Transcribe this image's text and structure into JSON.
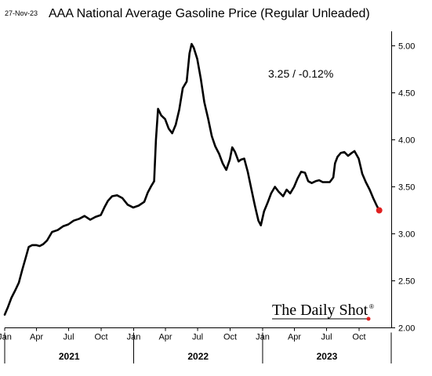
{
  "header": {
    "date": "27-Nov-23"
  },
  "logo": {
    "text": "The Daily Shot",
    "mark": "®",
    "accent": "#e02020"
  },
  "chart_data": {
    "type": "line",
    "title": "AAA National Average Gasoline Price (Regular Unleaded)",
    "annotation": "3.25  /  -0.12%",
    "xlabel": "",
    "ylabel": "",
    "ylim": [
      2.0,
      5.0
    ],
    "y_ticks": [
      "2.00",
      "2.50",
      "3.00",
      "3.50",
      "4.00",
      "4.50",
      "5.00"
    ],
    "x_range": [
      "2021-01-01",
      "2023-12-31"
    ],
    "x_ticks": [
      {
        "date": "2021-01-01",
        "label": "Jan"
      },
      {
        "date": "2021-04-01",
        "label": "Apr"
      },
      {
        "date": "2021-07-01",
        "label": "Jul"
      },
      {
        "date": "2021-10-01",
        "label": "Oct"
      },
      {
        "date": "2022-01-01",
        "label": "Jan"
      },
      {
        "date": "2022-04-01",
        "label": "Apr"
      },
      {
        "date": "2022-07-01",
        "label": "Jul"
      },
      {
        "date": "2022-10-01",
        "label": "Oct"
      },
      {
        "date": "2023-01-01",
        "label": "Jan"
      },
      {
        "date": "2023-04-01",
        "label": "Apr"
      },
      {
        "date": "2023-07-01",
        "label": "Jul"
      },
      {
        "date": "2023-10-01",
        "label": "Oct"
      }
    ],
    "years": [
      "2021",
      "2022",
      "2023"
    ],
    "line_color": "#000000",
    "last_point_color": "#e02020",
    "series": [
      {
        "points": [
          [
            "2021-01-01",
            2.14
          ],
          [
            "2021-01-10",
            2.22
          ],
          [
            "2021-01-20",
            2.32
          ],
          [
            "2021-01-31",
            2.4
          ],
          [
            "2021-02-10",
            2.48
          ],
          [
            "2021-02-20",
            2.62
          ],
          [
            "2021-03-01",
            2.74
          ],
          [
            "2021-03-10",
            2.86
          ],
          [
            "2021-03-20",
            2.88
          ],
          [
            "2021-03-31",
            2.88
          ],
          [
            "2021-04-10",
            2.87
          ],
          [
            "2021-04-20",
            2.89
          ],
          [
            "2021-05-01",
            2.93
          ],
          [
            "2021-05-15",
            3.02
          ],
          [
            "2021-05-31",
            3.04
          ],
          [
            "2021-06-15",
            3.08
          ],
          [
            "2021-06-30",
            3.1
          ],
          [
            "2021-07-15",
            3.14
          ],
          [
            "2021-07-31",
            3.16
          ],
          [
            "2021-08-15",
            3.19
          ],
          [
            "2021-08-31",
            3.15
          ],
          [
            "2021-09-15",
            3.18
          ],
          [
            "2021-09-30",
            3.2
          ],
          [
            "2021-10-10",
            3.28
          ],
          [
            "2021-10-20",
            3.35
          ],
          [
            "2021-11-01",
            3.4
          ],
          [
            "2021-11-15",
            3.41
          ],
          [
            "2021-11-30",
            3.38
          ],
          [
            "2021-12-15",
            3.31
          ],
          [
            "2021-12-31",
            3.28
          ],
          [
            "2022-01-15",
            3.3
          ],
          [
            "2022-01-31",
            3.34
          ],
          [
            "2022-02-10",
            3.44
          ],
          [
            "2022-02-20",
            3.51
          ],
          [
            "2022-02-28",
            3.56
          ],
          [
            "2022-03-05",
            4.0
          ],
          [
            "2022-03-11",
            4.33
          ],
          [
            "2022-03-20",
            4.26
          ],
          [
            "2022-03-31",
            4.22
          ],
          [
            "2022-04-10",
            4.12
          ],
          [
            "2022-04-20",
            4.07
          ],
          [
            "2022-04-30",
            4.16
          ],
          [
            "2022-05-10",
            4.32
          ],
          [
            "2022-05-20",
            4.55
          ],
          [
            "2022-05-31",
            4.62
          ],
          [
            "2022-06-08",
            4.92
          ],
          [
            "2022-06-14",
            5.02
          ],
          [
            "2022-06-20",
            4.98
          ],
          [
            "2022-06-30",
            4.86
          ],
          [
            "2022-07-10",
            4.65
          ],
          [
            "2022-07-20",
            4.4
          ],
          [
            "2022-07-31",
            4.22
          ],
          [
            "2022-08-10",
            4.04
          ],
          [
            "2022-08-20",
            3.93
          ],
          [
            "2022-08-31",
            3.85
          ],
          [
            "2022-09-10",
            3.75
          ],
          [
            "2022-09-20",
            3.68
          ],
          [
            "2022-09-30",
            3.79
          ],
          [
            "2022-10-07",
            3.92
          ],
          [
            "2022-10-15",
            3.87
          ],
          [
            "2022-10-25",
            3.77
          ],
          [
            "2022-11-01",
            3.79
          ],
          [
            "2022-11-10",
            3.8
          ],
          [
            "2022-11-20",
            3.66
          ],
          [
            "2022-11-30",
            3.48
          ],
          [
            "2022-12-10",
            3.3
          ],
          [
            "2022-12-20",
            3.14
          ],
          [
            "2022-12-27",
            3.09
          ],
          [
            "2023-01-05",
            3.24
          ],
          [
            "2023-01-15",
            3.33
          ],
          [
            "2023-01-25",
            3.43
          ],
          [
            "2023-02-05",
            3.5
          ],
          [
            "2023-02-15",
            3.45
          ],
          [
            "2023-02-28",
            3.4
          ],
          [
            "2023-03-10",
            3.47
          ],
          [
            "2023-03-20",
            3.43
          ],
          [
            "2023-03-31",
            3.5
          ],
          [
            "2023-04-10",
            3.59
          ],
          [
            "2023-04-20",
            3.66
          ],
          [
            "2023-05-01",
            3.65
          ],
          [
            "2023-05-10",
            3.56
          ],
          [
            "2023-05-20",
            3.54
          ],
          [
            "2023-05-31",
            3.56
          ],
          [
            "2023-06-10",
            3.57
          ],
          [
            "2023-06-20",
            3.55
          ],
          [
            "2023-06-30",
            3.55
          ],
          [
            "2023-07-10",
            3.55
          ],
          [
            "2023-07-20",
            3.6
          ],
          [
            "2023-07-25",
            3.75
          ],
          [
            "2023-08-01",
            3.82
          ],
          [
            "2023-08-10",
            3.86
          ],
          [
            "2023-08-20",
            3.87
          ],
          [
            "2023-08-31",
            3.83
          ],
          [
            "2023-09-10",
            3.86
          ],
          [
            "2023-09-18",
            3.88
          ],
          [
            "2023-09-30",
            3.8
          ],
          [
            "2023-10-10",
            3.64
          ],
          [
            "2023-10-20",
            3.55
          ],
          [
            "2023-10-31",
            3.47
          ],
          [
            "2023-11-10",
            3.38
          ],
          [
            "2023-11-20",
            3.3
          ],
          [
            "2023-11-27",
            3.25
          ]
        ]
      }
    ]
  }
}
